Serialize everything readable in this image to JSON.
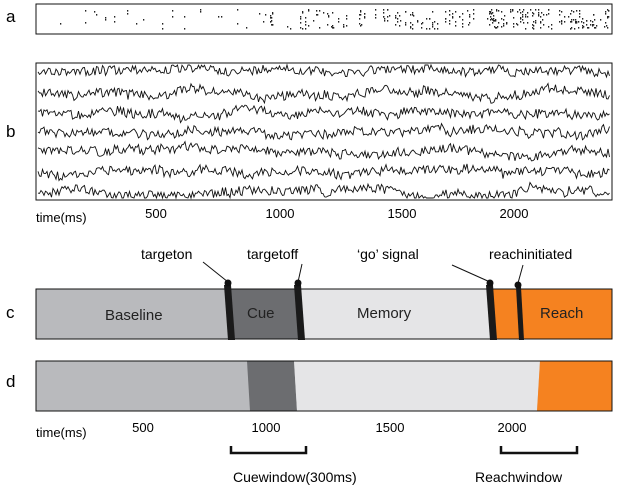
{
  "panels": {
    "a": "a",
    "b": "b",
    "c": "c",
    "d": "d"
  },
  "timeline_b": {
    "axis_label": "time(ms)",
    "ticks": [
      "500",
      "1000",
      "1500",
      "2000"
    ]
  },
  "events": {
    "target_on": "targeton",
    "target_off": "targetoff",
    "go_signal": "‘go’ signal",
    "reach_initiated": "reachinitiated"
  },
  "phases": {
    "baseline": "Baseline",
    "cue": "Cue",
    "memory": "Memory",
    "reach": "Reach"
  },
  "timeline_d": {
    "axis_label": "time(ms)",
    "ticks": [
      "500",
      "1000",
      "1500",
      "2000"
    ]
  },
  "windows": {
    "cue_window": "Cuewindow(300ms)",
    "reach_window": "Reachwindow"
  },
  "colors": {
    "baseline": "#b9babd",
    "cue": "#6c6d70",
    "memory": "#e5e5e7",
    "reach": "#f58220",
    "event_marker": "#1a1a1a",
    "trace": "#111111"
  },
  "lfp_trace_count": 7
}
